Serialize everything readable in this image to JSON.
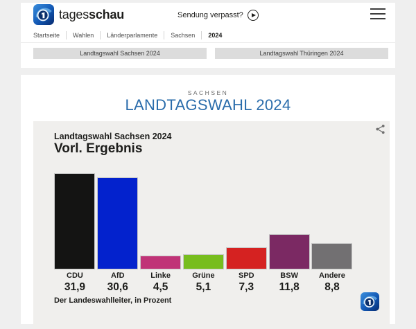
{
  "header": {
    "wordmark_regular": "tages",
    "wordmark_bold": "schau",
    "sendung_verpasst": "Sendung verpasst?",
    "breadcrumb": [
      "Startseite",
      "Wahlen",
      "Länderparlamente",
      "Sachsen",
      "2024"
    ]
  },
  "nav_buttons": [
    {
      "label": "Landtagswahl Sachsen 2024"
    },
    {
      "label": "Landtagswahl Thüringen 2024"
    }
  ],
  "page": {
    "kicker": "SACHSEN",
    "title": "LANDTAGSWAHL 2024",
    "title_color": "#2a6cab"
  },
  "chart_card": {
    "subtitle": "Landtagswahl Sachsen 2024",
    "title": "Vorl. Ergebnis",
    "source": "Der Landeswahlleiter, in Prozent",
    "background": "#f0efed"
  },
  "chart_data": {
    "type": "bar",
    "title": "Vorl. Ergebnis",
    "subtitle": "Landtagswahl Sachsen 2024",
    "categories": [
      "CDU",
      "AfD",
      "Linke",
      "Grüne",
      "SPD",
      "BSW",
      "Andere"
    ],
    "values": [
      31.9,
      30.6,
      4.5,
      5.1,
      7.3,
      11.8,
      8.8
    ],
    "value_labels": [
      "31,9",
      "30,6",
      "4,5",
      "5,1",
      "7,3",
      "11,8",
      "8,8"
    ],
    "colors": [
      "#141413",
      "#0322cd",
      "#c03377",
      "#77bd1e",
      "#d52221",
      "#7b2963",
      "#727072"
    ],
    "unit": "Prozent",
    "source": "Der Landeswahlleiter",
    "ylim": [
      0,
      32
    ],
    "grid": false,
    "legend": false
  }
}
